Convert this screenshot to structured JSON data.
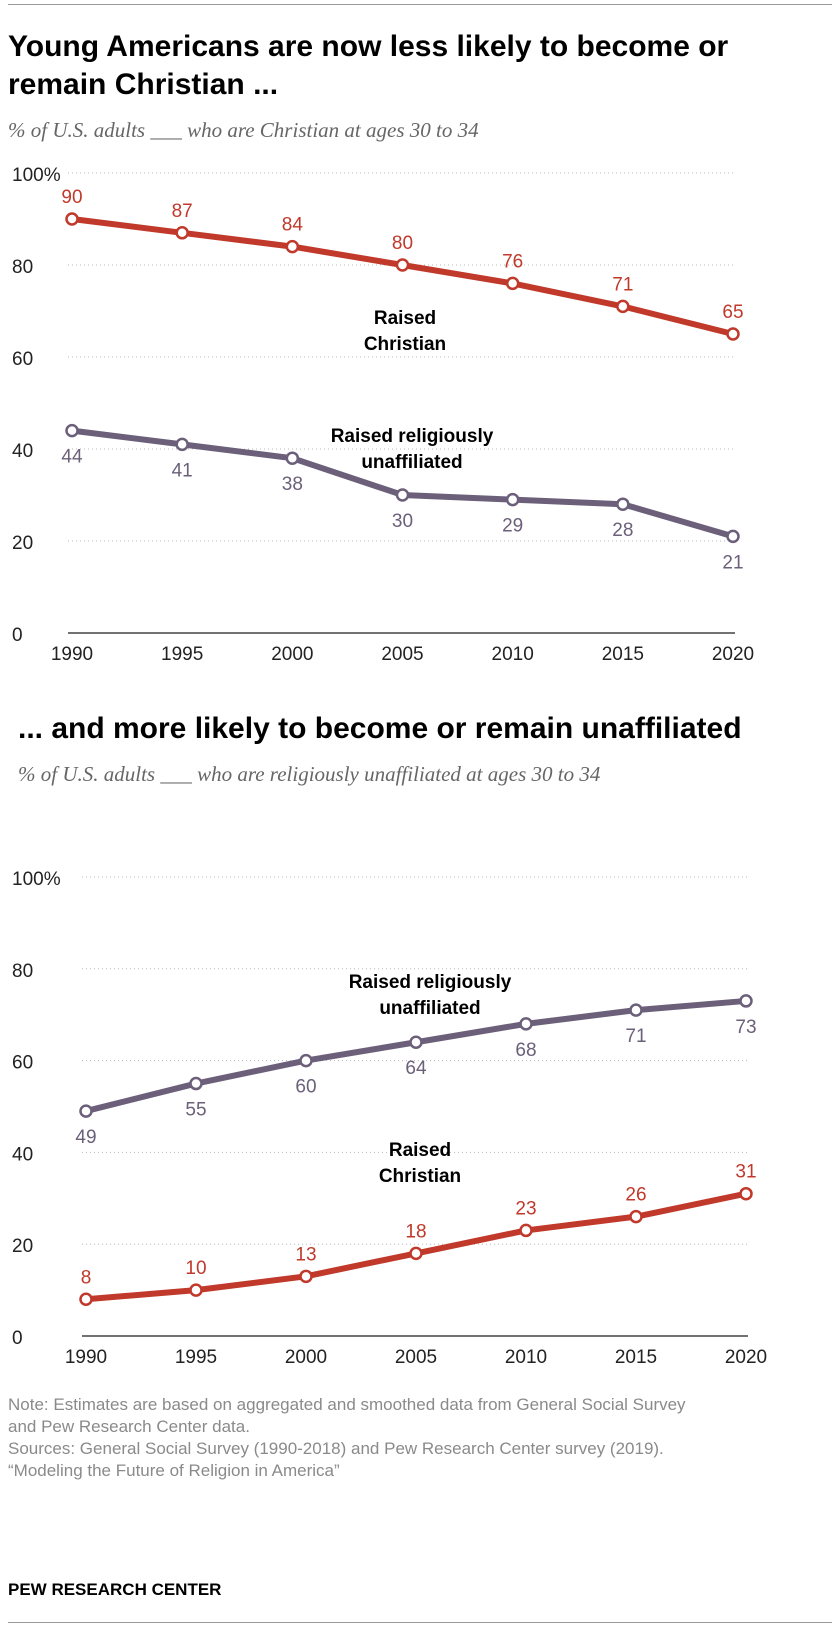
{
  "charts": [
    {
      "title": "Young Americans are now less likely to become or remain Christian ...",
      "subtitle": "% of U.S. adults ___ who are Christian at ages 30 to 34"
    },
    {
      "title": "... and more likely to become or remain unaffiliated",
      "subtitle": "% of U.S. adults ___ who are religiously unaffiliated at ages 30 to 34"
    }
  ],
  "chart_data": [
    {
      "type": "line",
      "title": "Young Americans are now less likely to become or remain Christian ...",
      "subtitle": "% of U.S. adults ___ who are Christian at ages 30 to 34",
      "x": [
        1990,
        1995,
        2000,
        2005,
        2010,
        2015,
        2020
      ],
      "ylim": [
        0,
        100
      ],
      "yticks": [
        "0",
        "20",
        "40",
        "60",
        "80",
        "100%"
      ],
      "grid": true,
      "series": [
        {
          "name": "Raised Christian",
          "name_lines": [
            "Raised",
            "Christian"
          ],
          "color": "#c0392b",
          "values": [
            90,
            87,
            84,
            80,
            76,
            71,
            65
          ],
          "label_position": "above"
        },
        {
          "name": "Raised religiously unaffiliated",
          "name_lines": [
            "Raised religiously",
            "unaffiliated"
          ],
          "color": "#6b5f7a",
          "values": [
            44,
            41,
            38,
            30,
            29,
            28,
            21
          ],
          "label_position": "below"
        }
      ]
    },
    {
      "type": "line",
      "title": "... and more likely to become or remain unaffiliated",
      "subtitle": "% of U.S. adults ___ who are religiously unaffiliated at ages 30 to 34",
      "x": [
        1990,
        1995,
        2000,
        2005,
        2010,
        2015,
        2020
      ],
      "ylim": [
        0,
        100
      ],
      "yticks": [
        "0",
        "20",
        "40",
        "60",
        "80",
        "100%"
      ],
      "grid": true,
      "series": [
        {
          "name": "Raised religiously unaffiliated",
          "name_lines": [
            "Raised religiously",
            "unaffiliated"
          ],
          "color": "#6b5f7a",
          "values": [
            49,
            55,
            60,
            64,
            68,
            71,
            73
          ],
          "label_position": "below"
        },
        {
          "name": "Raised Christian",
          "name_lines": [
            "Raised",
            "Christian"
          ],
          "color": "#c0392b",
          "values": [
            8,
            10,
            13,
            18,
            23,
            26,
            31
          ],
          "label_position": "above"
        }
      ]
    }
  ],
  "notes": {
    "note_lines": [
      "Note: Estimates are based on aggregated and smoothed data from General Social Survey",
      "and Pew Research Center data."
    ],
    "source_lines": [
      "Sources: General Social Survey (1990-2018) and Pew Research Center survey (2019).",
      "“Modeling the Future of Religion in America”"
    ]
  },
  "brand": "PEW RESEARCH CENTER"
}
